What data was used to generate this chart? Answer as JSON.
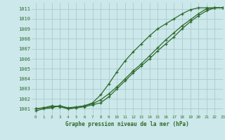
{
  "title": "Graphe pression niveau de la mer (hPa)",
  "bg_color": "#cce8ea",
  "grid_color": "#aacccc",
  "line_color": "#2d6a2d",
  "xlim": [
    -0.5,
    23
  ],
  "ylim": [
    1000.4,
    1011.6
  ],
  "yticks": [
    1001,
    1002,
    1003,
    1004,
    1005,
    1006,
    1007,
    1008,
    1009,
    1010,
    1011
  ],
  "xticks": [
    0,
    1,
    2,
    3,
    4,
    5,
    6,
    7,
    8,
    9,
    10,
    11,
    12,
    13,
    14,
    15,
    16,
    17,
    18,
    19,
    20,
    21,
    22,
    23
  ],
  "line1_x": [
    0,
    1,
    2,
    3,
    4,
    5,
    6,
    7,
    8,
    9,
    10,
    11,
    12,
    13,
    14,
    15,
    16,
    17,
    18,
    19,
    20,
    21,
    22,
    23
  ],
  "line1_y": [
    1001.0,
    1001.1,
    1001.2,
    1001.3,
    1001.1,
    1001.2,
    1001.3,
    1001.5,
    1001.9,
    1002.5,
    1003.2,
    1004.0,
    1004.8,
    1005.5,
    1006.3,
    1007.1,
    1007.9,
    1008.6,
    1009.3,
    1009.9,
    1010.5,
    1011.0,
    1011.1,
    1011.1
  ],
  "line2_x": [
    0,
    1,
    2,
    3,
    4,
    5,
    6,
    7,
    8,
    9,
    10,
    11,
    12,
    13,
    14,
    15,
    16,
    17,
    18,
    19,
    20,
    21,
    22,
    23
  ],
  "line2_y": [
    1001.0,
    1001.1,
    1001.3,
    1001.2,
    1001.0,
    1001.1,
    1001.2,
    1001.4,
    1001.6,
    1002.2,
    1003.0,
    1003.8,
    1004.6,
    1005.3,
    1006.0,
    1006.8,
    1007.5,
    1008.2,
    1009.0,
    1009.7,
    1010.3,
    1010.8,
    1011.1,
    1011.1
  ],
  "line3_x": [
    0,
    1,
    2,
    3,
    4,
    5,
    6,
    7,
    8,
    9,
    10,
    11,
    12,
    13,
    14,
    15,
    16,
    17,
    18,
    19,
    20,
    21,
    22,
    23
  ],
  "line3_y": [
    1000.8,
    1001.0,
    1001.1,
    1001.3,
    1001.0,
    1001.1,
    1001.3,
    1001.6,
    1002.4,
    1003.5,
    1004.7,
    1005.8,
    1006.7,
    1007.5,
    1008.3,
    1009.0,
    1009.5,
    1010.0,
    1010.5,
    1010.9,
    1011.1,
    1011.1,
    1011.1,
    1011.1
  ]
}
